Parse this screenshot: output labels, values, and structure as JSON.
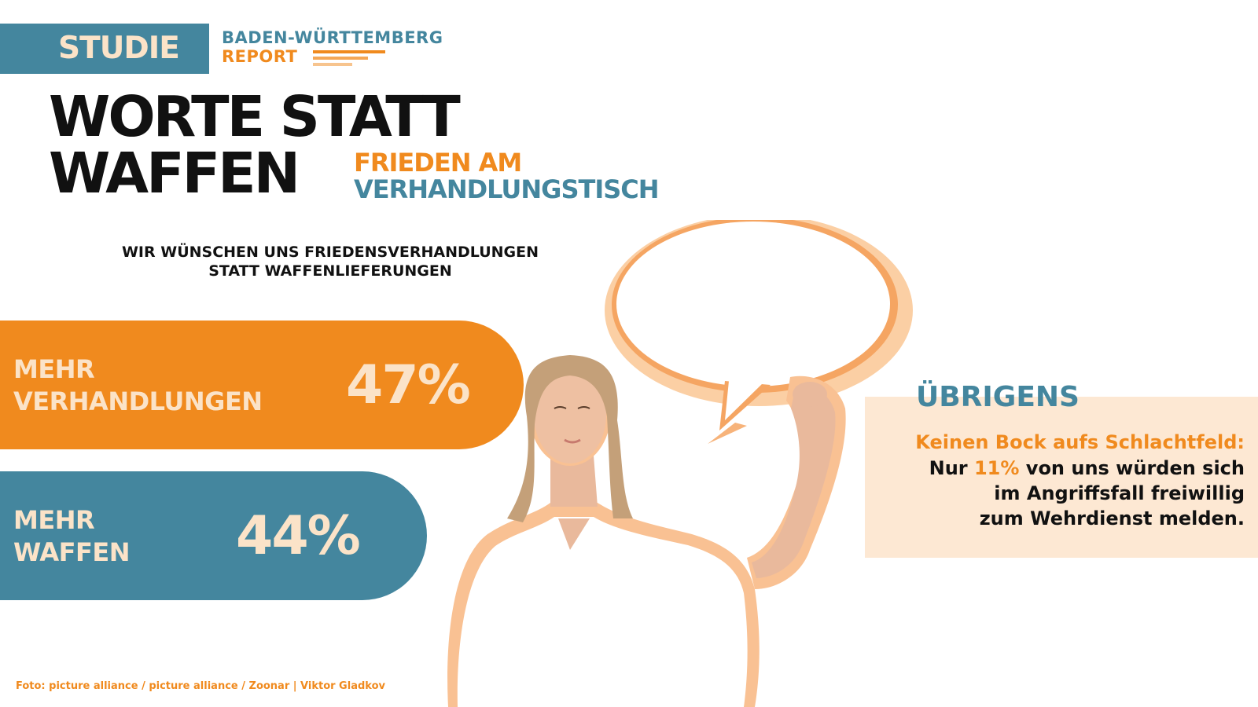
{
  "brand": {
    "badge": "STUDIE",
    "report_line_1": "BADEN-WÜRTTEMBERG",
    "report_line_2": "REPORT"
  },
  "headline": {
    "line_1": "WORTE STATT",
    "line_2": "WAFFEN",
    "sub_line_1": "FRIEDEN AM",
    "sub_line_2": "VERHANDLUNGSTISCH"
  },
  "statement": {
    "line_1": "WIR WÜNSCHEN UNS FRIEDENSVERHANDLUNGEN",
    "line_2": "STATT WAFFENLIEFERUNGEN"
  },
  "results": [
    {
      "label_1": "MEHR",
      "label_2": "VERHANDLUNGEN",
      "value": "47%",
      "percent": 47,
      "color": "#f08a1e"
    },
    {
      "label_1": "MEHR",
      "label_2": "WAFFEN",
      "value": "44%",
      "percent": 44,
      "color": "#44869e"
    }
  ],
  "info": {
    "heading": "ÜBRIGENS",
    "line_1": "Keinen Bock aufs Schlachtfeld:",
    "line_2_pre": "Nur ",
    "line_2_highlight": "11%",
    "line_2_post": " von uns würden sich",
    "line_3": "im Angriffsfall freiwillig",
    "line_4": "zum Wehrdienst melden."
  },
  "credit": "Foto: picture alliance / picture alliance / Zoonar | Viktor Gladkov",
  "colors": {
    "orange": "#f08a1e",
    "teal": "#44869e",
    "cream": "#fbe3c8",
    "peach_bg": "#fde8d3",
    "text_dark": "#111111"
  },
  "illustration": {
    "subject": "woman-holding-speech-bubble",
    "icon": "speech-bubble-icon"
  }
}
